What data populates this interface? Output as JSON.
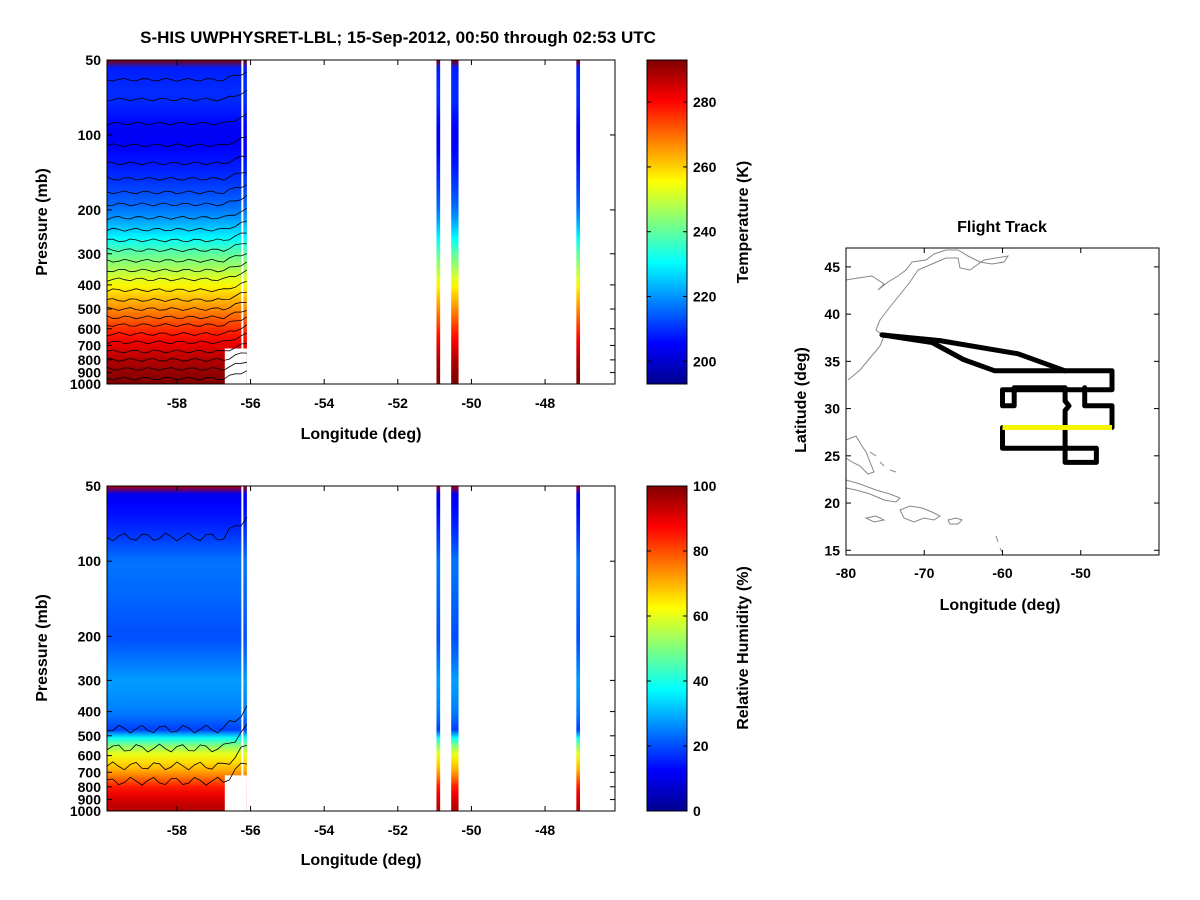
{
  "title": "S-HIS UWPHYSRET-LBL;   15-Sep-2012, 00:50 through 02:53 UTC",
  "chart_data": [
    {
      "id": "temperature",
      "type": "heatmap",
      "xlabel": "Longitude (deg)",
      "ylabel": "Pressure (mb)",
      "xlim": [
        -59.9,
        -46.1
      ],
      "ylim": [
        50,
        1000
      ],
      "yscale": "log",
      "xticks": [
        -58,
        -56,
        -54,
        -52,
        -50,
        -48
      ],
      "xtick_labels": [
        "-58",
        "-56",
        "-54",
        "-52",
        "-50",
        "-48"
      ],
      "yticks": [
        50,
        100,
        200,
        300,
        400,
        500,
        600,
        700,
        800,
        900,
        1000
      ],
      "ytick_labels": [
        "50",
        "100",
        "200",
        "300",
        "400",
        "500",
        "600",
        "700",
        "800",
        "900",
        "1000"
      ],
      "colorbar": {
        "label": "Temperature (K)",
        "range": [
          193,
          293
        ],
        "ticks": [
          200,
          220,
          240,
          260,
          280
        ],
        "tick_labels": [
          "200",
          "220",
          "240",
          "260",
          "280"
        ]
      },
      "data_segments": [
        [
          -59.9,
          -56.1
        ],
        [
          -50.95,
          -50.85
        ],
        [
          -50.55,
          -50.35
        ],
        [
          -47.15,
          -47.05
        ]
      ],
      "profile": [
        [
          50,
          208
        ],
        [
          70,
          210
        ],
        [
          100,
          204
        ],
        [
          150,
          210
        ],
        [
          200,
          217
        ],
        [
          250,
          228
        ],
        [
          300,
          240
        ],
        [
          400,
          256
        ],
        [
          500,
          267
        ],
        [
          600,
          276
        ],
        [
          700,
          283
        ],
        [
          800,
          288
        ],
        [
          900,
          291
        ],
        [
          1000,
          293
        ]
      ]
    },
    {
      "id": "humidity",
      "type": "heatmap",
      "xlabel": "Longitude (deg)",
      "ylabel": "Pressure (mb)",
      "xlim": [
        -59.9,
        -46.1
      ],
      "ylim": [
        50,
        1000
      ],
      "yscale": "log",
      "xticks": [
        -58,
        -56,
        -54,
        -52,
        -50,
        -48
      ],
      "xtick_labels": [
        "-58",
        "-56",
        "-54",
        "-52",
        "-50",
        "-48"
      ],
      "yticks": [
        50,
        100,
        200,
        300,
        400,
        500,
        600,
        700,
        800,
        900,
        1000
      ],
      "ytick_labels": [
        "50",
        "100",
        "200",
        "300",
        "400",
        "500",
        "600",
        "700",
        "800",
        "900",
        "1000"
      ],
      "colorbar": {
        "label": "Relative Humidity (%)",
        "range": [
          0,
          100
        ],
        "ticks": [
          0,
          20,
          40,
          60,
          80,
          100
        ],
        "tick_labels": [
          "0",
          "20",
          "40",
          "60",
          "80",
          "100"
        ]
      },
      "data_segments": [
        [
          -59.9,
          -56.1
        ],
        [
          -50.95,
          -50.85
        ],
        [
          -50.55,
          -50.35
        ],
        [
          -47.15,
          -47.05
        ]
      ],
      "profile": [
        [
          50,
          10
        ],
        [
          80,
          18
        ],
        [
          100,
          24
        ],
        [
          200,
          20
        ],
        [
          300,
          28
        ],
        [
          400,
          25
        ],
        [
          480,
          18
        ],
        [
          520,
          45
        ],
        [
          600,
          62
        ],
        [
          700,
          72
        ],
        [
          800,
          85
        ],
        [
          900,
          92
        ],
        [
          1000,
          95
        ]
      ]
    },
    {
      "id": "flight-track",
      "type": "line",
      "title": "Flight Track",
      "xlabel": "Longitude (deg)",
      "ylabel": "Latitude (deg)",
      "xlim": [
        -80,
        -40
      ],
      "ylim": [
        14.5,
        47
      ],
      "xticks": [
        -80,
        -70,
        -60,
        -50
      ],
      "xtick_labels": [
        "-80",
        "-70",
        "-60",
        "-50"
      ],
      "yticks": [
        15,
        20,
        25,
        30,
        35,
        40,
        45
      ],
      "ytick_labels": [
        "15",
        "20",
        "25",
        "30",
        "35",
        "40",
        "45"
      ],
      "track": [
        [
          -75.4,
          37.8
        ],
        [
          -68,
          37.2
        ],
        [
          -58,
          35.8
        ],
        [
          -52,
          34
        ],
        [
          -46,
          34
        ],
        [
          -46,
          32
        ],
        [
          -60,
          32
        ],
        [
          -60,
          30.3
        ],
        [
          -58.5,
          30.3
        ],
        [
          -58.5,
          32.2
        ],
        [
          -52,
          32.2
        ],
        [
          -52,
          30.8
        ],
        [
          -51.5,
          30.3
        ],
        [
          -52,
          29.8
        ],
        [
          -52,
          26.5
        ],
        [
          -52,
          24.3
        ],
        [
          -48,
          24.3
        ],
        [
          -48,
          25.8
        ],
        [
          -52,
          25.8
        ],
        [
          -60,
          25.8
        ],
        [
          -60,
          28
        ],
        [
          -46,
          28
        ],
        [
          -46,
          30.3
        ],
        [
          -49.5,
          30.3
        ],
        [
          -49.5,
          32.2
        ]
      ],
      "track2": [
        [
          -75.4,
          37.8
        ],
        [
          -69,
          37
        ],
        [
          -65,
          35.2
        ],
        [
          -61,
          34
        ],
        [
          -52,
          34
        ]
      ],
      "highlight": [
        [
          -60,
          28
        ],
        [
          -46,
          28
        ]
      ],
      "highlight_color": "#f5f500",
      "track_color": "#000000"
    }
  ]
}
